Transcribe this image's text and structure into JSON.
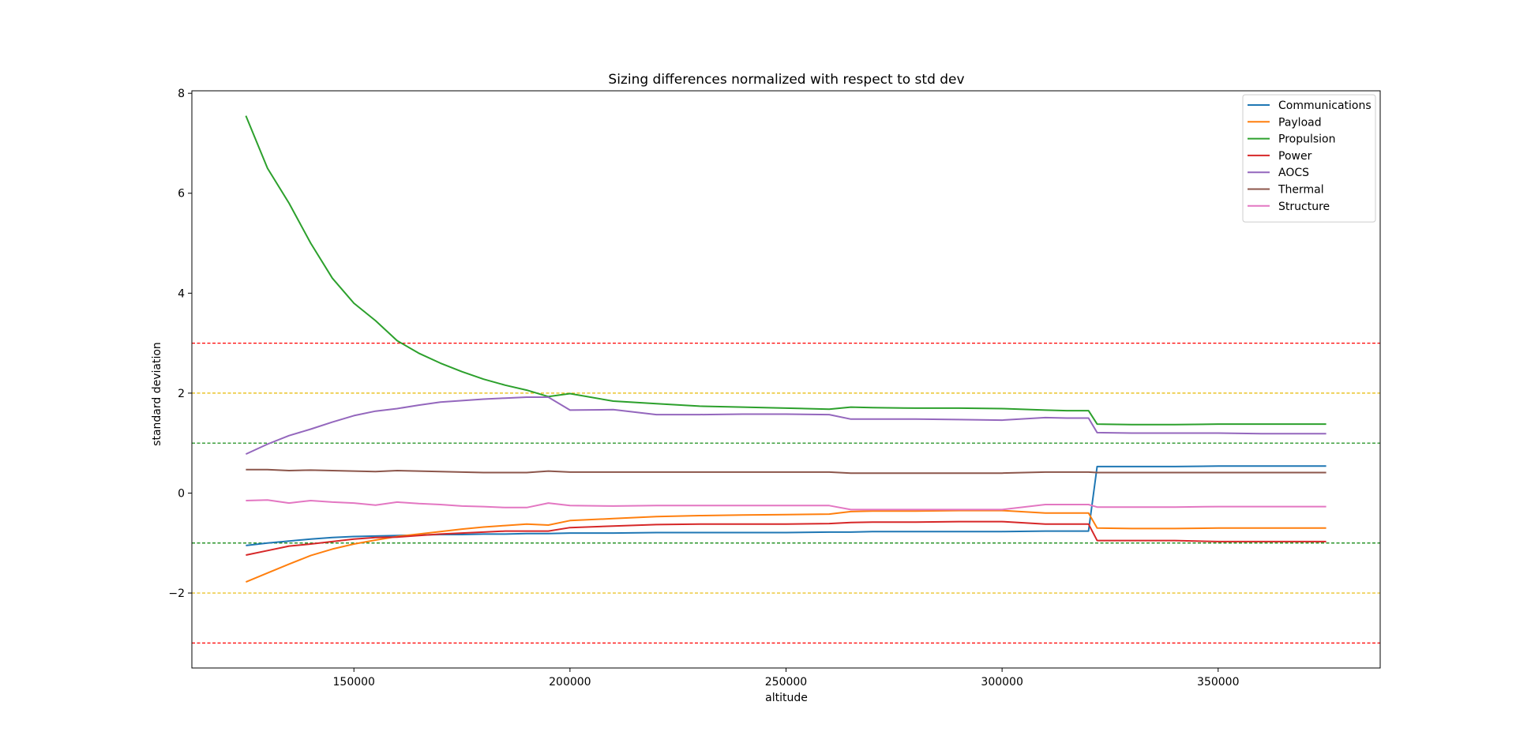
{
  "chart_data": {
    "type": "line",
    "title": "Sizing differences normalized with respect to std dev",
    "xlabel": "altitude",
    "ylabel": "standard deviation",
    "xlim": [
      112500,
      387500
    ],
    "ylim": [
      -3.5,
      8.05
    ],
    "x_ticks": [
      150000,
      200000,
      250000,
      300000,
      350000
    ],
    "y_ticks": [
      -2,
      0,
      2,
      4,
      6,
      8
    ],
    "y_tick_labels": [
      "−2",
      "0",
      "2",
      "4",
      "6",
      "8"
    ],
    "grid": false,
    "legend_position": "top-right",
    "x": [
      125000,
      130000,
      135000,
      140000,
      145000,
      150000,
      155000,
      160000,
      165000,
      170000,
      175000,
      180000,
      185000,
      190000,
      195000,
      200000,
      210000,
      220000,
      230000,
      240000,
      250000,
      260000,
      265000,
      270000,
      280000,
      290000,
      300000,
      310000,
      315000,
      320000,
      322000,
      330000,
      340000,
      350000,
      360000,
      375000
    ],
    "series": [
      {
        "name": "Communications",
        "color": "#1f77b4",
        "values": [
          -1.05,
          -1.0,
          -0.96,
          -0.92,
          -0.89,
          -0.87,
          -0.86,
          -0.85,
          -0.84,
          -0.83,
          -0.83,
          -0.82,
          -0.82,
          -0.81,
          -0.81,
          -0.8,
          -0.8,
          -0.79,
          -0.79,
          -0.79,
          -0.79,
          -0.78,
          -0.78,
          -0.77,
          -0.77,
          -0.77,
          -0.77,
          -0.76,
          -0.76,
          -0.76,
          0.53,
          0.53,
          0.53,
          0.54,
          0.54,
          0.54
        ]
      },
      {
        "name": "Payload",
        "color": "#ff7f0e",
        "values": [
          -1.78,
          -1.6,
          -1.42,
          -1.25,
          -1.12,
          -1.02,
          -0.94,
          -0.87,
          -0.82,
          -0.77,
          -0.72,
          -0.68,
          -0.65,
          -0.62,
          -0.64,
          -0.55,
          -0.51,
          -0.47,
          -0.45,
          -0.44,
          -0.43,
          -0.42,
          -0.37,
          -0.36,
          -0.36,
          -0.35,
          -0.35,
          -0.4,
          -0.4,
          -0.4,
          -0.7,
          -0.71,
          -0.71,
          -0.7,
          -0.7,
          -0.7
        ]
      },
      {
        "name": "Propulsion",
        "color": "#2ca02c",
        "values": [
          7.55,
          6.5,
          5.8,
          5.0,
          4.3,
          3.8,
          3.45,
          3.05,
          2.8,
          2.6,
          2.43,
          2.28,
          2.16,
          2.06,
          1.93,
          1.99,
          1.84,
          1.79,
          1.74,
          1.72,
          1.7,
          1.68,
          1.72,
          1.71,
          1.7,
          1.7,
          1.69,
          1.66,
          1.65,
          1.65,
          1.38,
          1.37,
          1.37,
          1.38,
          1.38,
          1.38
        ]
      },
      {
        "name": "Power",
        "color": "#d62728",
        "values": [
          -1.24,
          -1.15,
          -1.06,
          -1.02,
          -0.97,
          -0.92,
          -0.89,
          -0.88,
          -0.85,
          -0.82,
          -0.8,
          -0.78,
          -0.76,
          -0.76,
          -0.76,
          -0.69,
          -0.66,
          -0.63,
          -0.62,
          -0.62,
          -0.62,
          -0.61,
          -0.59,
          -0.58,
          -0.58,
          -0.57,
          -0.57,
          -0.62,
          -0.62,
          -0.62,
          -0.95,
          -0.95,
          -0.95,
          -0.97,
          -0.97,
          -0.97
        ]
      },
      {
        "name": "AOCS",
        "color": "#9467bd",
        "values": [
          0.78,
          0.98,
          1.15,
          1.28,
          1.42,
          1.55,
          1.64,
          1.69,
          1.76,
          1.82,
          1.85,
          1.88,
          1.9,
          1.92,
          1.92,
          1.66,
          1.67,
          1.57,
          1.57,
          1.58,
          1.58,
          1.57,
          1.48,
          1.48,
          1.48,
          1.47,
          1.46,
          1.51,
          1.5,
          1.5,
          1.21,
          1.2,
          1.2,
          1.2,
          1.19,
          1.19
        ]
      },
      {
        "name": "Thermal",
        "color": "#8c564b",
        "values": [
          0.47,
          0.47,
          0.45,
          0.46,
          0.45,
          0.44,
          0.43,
          0.45,
          0.44,
          0.43,
          0.42,
          0.41,
          0.41,
          0.41,
          0.44,
          0.42,
          0.42,
          0.42,
          0.42,
          0.42,
          0.42,
          0.42,
          0.4,
          0.4,
          0.4,
          0.4,
          0.4,
          0.42,
          0.42,
          0.42,
          0.41,
          0.41,
          0.41,
          0.41,
          0.41,
          0.41
        ]
      },
      {
        "name": "Structure",
        "color": "#e377c2",
        "values": [
          -0.15,
          -0.14,
          -0.2,
          -0.15,
          -0.18,
          -0.2,
          -0.24,
          -0.18,
          -0.21,
          -0.23,
          -0.26,
          -0.27,
          -0.29,
          -0.29,
          -0.2,
          -0.25,
          -0.26,
          -0.25,
          -0.25,
          -0.25,
          -0.25,
          -0.25,
          -0.33,
          -0.33,
          -0.33,
          -0.33,
          -0.33,
          -0.23,
          -0.23,
          -0.23,
          -0.28,
          -0.28,
          -0.28,
          -0.27,
          -0.27,
          -0.27
        ]
      }
    ],
    "reference_lines": [
      {
        "y": 3,
        "color": "#ff0000",
        "style": "dashed"
      },
      {
        "y": -3,
        "color": "#ff0000",
        "style": "dashed"
      },
      {
        "y": 2,
        "color": "#e6b800",
        "style": "dashed"
      },
      {
        "y": -2,
        "color": "#e6b800",
        "style": "dashed"
      },
      {
        "y": 1,
        "color": "#008000",
        "style": "dashed"
      },
      {
        "y": -1,
        "color": "#008000",
        "style": "dashed"
      }
    ]
  }
}
